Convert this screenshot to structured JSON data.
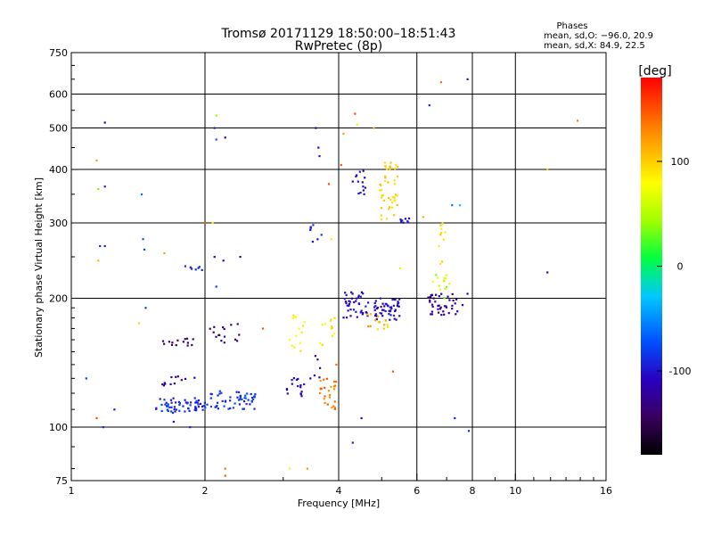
{
  "chart_data": {
    "type": "scatter",
    "title": "Tromsø 20171129 18:50:00–18:51:43",
    "subtitle": "RwPretec (8p)",
    "xlabel": "Frequency [MHz]",
    "ylabel": "Stationary phase Virtual Height [km]",
    "x_scale": "log",
    "y_scale": "log",
    "xlim": [
      1,
      16
    ],
    "ylim": [
      75,
      750
    ],
    "x_ticks": [
      1,
      2,
      4,
      6,
      8,
      10,
      16
    ],
    "y_ticks": [
      75,
      100,
      200,
      300,
      400,
      500,
      600,
      750
    ],
    "x_grid": [
      2,
      4,
      6,
      8,
      10
    ],
    "y_grid": [
      100,
      200,
      300,
      400,
      500,
      600
    ],
    "grid": true,
    "phases_box": {
      "heading": "Phases",
      "line_o": "mean, sd,O:  −96.0,  20.9",
      "line_x": "mean, sd,X:   84.9,  22.5"
    },
    "colorbar": {
      "label": "[deg]",
      "min": -180,
      "max": 180,
      "ticks": [
        100,
        0,
        -100
      ]
    },
    "clusters": [
      {
        "f": [
          1.55,
          2.0
        ],
        "h": [
          108,
          117
        ],
        "n": 60,
        "ph": [
          -105,
          -75
        ]
      },
      {
        "f": [
          2.0,
          2.6
        ],
        "h": [
          110,
          122
        ],
        "n": 55,
        "ph": [
          -100,
          -70
        ]
      },
      {
        "f": [
          1.6,
          1.9
        ],
        "h": [
          125,
          132
        ],
        "n": 12,
        "ph": [
          -130,
          -110
        ]
      },
      {
        "f": [
          1.6,
          1.9
        ],
        "h": [
          155,
          162
        ],
        "n": 14,
        "ph": [
          -150,
          -130
        ]
      },
      {
        "f": [
          2.05,
          2.4
        ],
        "h": [
          155,
          175
        ],
        "n": 16,
        "ph": [
          -150,
          -125
        ]
      },
      {
        "f": [
          1.8,
          1.98
        ],
        "h": [
          232,
          238
        ],
        "n": 8,
        "ph": [
          -95,
          -75
        ]
      },
      {
        "f": [
          3.05,
          3.35
        ],
        "h": [
          118,
          132
        ],
        "n": 16,
        "ph": [
          -120,
          -95
        ]
      },
      {
        "f": [
          3.1,
          3.35
        ],
        "h": [
          150,
          185
        ],
        "n": 14,
        "ph": [
          60,
          100
        ]
      },
      {
        "f": [
          3.6,
          3.95
        ],
        "h": [
          110,
          130
        ],
        "n": 26,
        "ph": [
          110,
          150
        ]
      },
      {
        "f": [
          3.6,
          3.95
        ],
        "h": [
          155,
          185
        ],
        "n": 12,
        "ph": [
          70,
          100
        ]
      },
      {
        "f": [
          3.45,
          3.8
        ],
        "h": [
          130,
          150
        ],
        "n": 6,
        "ph": [
          -130,
          -100
        ]
      },
      {
        "f": [
          4.1,
          4.7
        ],
        "h": [
          180,
          210
        ],
        "n": 40,
        "ph": [
          -120,
          -90
        ]
      },
      {
        "f": [
          4.8,
          5.5
        ],
        "h": [
          178,
          200
        ],
        "n": 50,
        "ph": [
          -120,
          -90
        ]
      },
      {
        "f": [
          4.6,
          5.2
        ],
        "h": [
          165,
          185
        ],
        "n": 14,
        "ph": [
          90,
          130
        ]
      },
      {
        "f": [
          4.95,
          5.45
        ],
        "h": [
          300,
          420
        ],
        "n": 45,
        "ph": [
          90,
          110
        ]
      },
      {
        "f": [
          5.45,
          5.9
        ],
        "h": [
          300,
          310
        ],
        "n": 8,
        "ph": [
          -110,
          -90
        ]
      },
      {
        "f": [
          4.3,
          4.6
        ],
        "h": [
          350,
          400
        ],
        "n": 14,
        "ph": [
          -115,
          -95
        ]
      },
      {
        "f": [
          3.45,
          3.7
        ],
        "h": [
          270,
          300
        ],
        "n": 8,
        "ph": [
          -100,
          -80
        ]
      },
      {
        "f": [
          6.3,
          7.4
        ],
        "h": [
          183,
          205
        ],
        "n": 40,
        "ph": [
          -140,
          -110
        ]
      },
      {
        "f": [
          6.5,
          7.1
        ],
        "h": [
          200,
          230
        ],
        "n": 14,
        "ph": [
          20,
          90
        ]
      },
      {
        "f": [
          6.7,
          7.0
        ],
        "h": [
          240,
          300
        ],
        "n": 10,
        "ph": [
          80,
          110
        ]
      }
    ],
    "points": [
      {
        "f": 1.08,
        "h": 130,
        "ph": -80
      },
      {
        "f": 1.14,
        "h": 105,
        "ph": 150
      },
      {
        "f": 1.18,
        "h": 100,
        "ph": -90
      },
      {
        "f": 1.25,
        "h": 110,
        "ph": -100
      },
      {
        "f": 1.15,
        "h": 245,
        "ph": 110
      },
      {
        "f": 1.16,
        "h": 265,
        "ph": -90
      },
      {
        "f": 1.19,
        "h": 265,
        "ph": -100
      },
      {
        "f": 1.15,
        "h": 360,
        "ph": 30
      },
      {
        "f": 1.19,
        "h": 365,
        "ph": -95
      },
      {
        "f": 1.14,
        "h": 420,
        "ph": 120
      },
      {
        "f": 1.19,
        "h": 515,
        "ph": -110
      },
      {
        "f": 1.45,
        "h": 275,
        "ph": -70
      },
      {
        "f": 1.44,
        "h": 350,
        "ph": -60
      },
      {
        "f": 1.46,
        "h": 260,
        "ph": -75
      },
      {
        "f": 1.47,
        "h": 190,
        "ph": -80
      },
      {
        "f": 1.42,
        "h": 175,
        "ph": 100
      },
      {
        "f": 1.62,
        "h": 255,
        "ph": 120
      },
      {
        "f": 1.7,
        "h": 103,
        "ph": -100
      },
      {
        "f": 1.85,
        "h": 100,
        "ph": -90
      },
      {
        "f": 2.0,
        "h": 300,
        "ph": 150
      },
      {
        "f": 2.08,
        "h": 300,
        "ph": 80
      },
      {
        "f": 2.1,
        "h": 250,
        "ph": -110
      },
      {
        "f": 2.2,
        "h": 245,
        "ph": -110
      },
      {
        "f": 2.4,
        "h": 250,
        "ph": -130
      },
      {
        "f": 2.12,
        "h": 535,
        "ph": 40
      },
      {
        "f": 2.1,
        "h": 500,
        "ph": -90
      },
      {
        "f": 2.12,
        "h": 470,
        "ph": -70
      },
      {
        "f": 2.22,
        "h": 475,
        "ph": -120
      },
      {
        "f": 2.12,
        "h": 213,
        "ph": -80
      },
      {
        "f": 2.22,
        "h": 80,
        "ph": 140
      },
      {
        "f": 2.22,
        "h": 77,
        "ph": 150
      },
      {
        "f": 2.7,
        "h": 170,
        "ph": 150
      },
      {
        "f": 3.1,
        "h": 80,
        "ph": 70
      },
      {
        "f": 3.4,
        "h": 80,
        "ph": 120
      },
      {
        "f": 3.55,
        "h": 500,
        "ph": -110
      },
      {
        "f": 3.6,
        "h": 450,
        "ph": -110
      },
      {
        "f": 3.62,
        "h": 430,
        "ph": -100
      },
      {
        "f": 3.8,
        "h": 370,
        "ph": 150
      },
      {
        "f": 3.85,
        "h": 275,
        "ph": 90
      },
      {
        "f": 3.95,
        "h": 140,
        "ph": 140
      },
      {
        "f": 4.05,
        "h": 410,
        "ph": 150
      },
      {
        "f": 4.1,
        "h": 485,
        "ph": 120
      },
      {
        "f": 4.35,
        "h": 540,
        "ph": 150
      },
      {
        "f": 4.4,
        "h": 510,
        "ph": 70
      },
      {
        "f": 4.3,
        "h": 92,
        "ph": -100
      },
      {
        "f": 4.5,
        "h": 105,
        "ph": -110
      },
      {
        "f": 4.8,
        "h": 500,
        "ph": 110
      },
      {
        "f": 5.3,
        "h": 135,
        "ph": 150
      },
      {
        "f": 5.5,
        "h": 235,
        "ph": 60
      },
      {
        "f": 6.2,
        "h": 310,
        "ph": 110
      },
      {
        "f": 6.4,
        "h": 565,
        "ph": -90
      },
      {
        "f": 6.8,
        "h": 640,
        "ph": 140
      },
      {
        "f": 7.2,
        "h": 330,
        "ph": -60
      },
      {
        "f": 7.5,
        "h": 330,
        "ph": -30
      },
      {
        "f": 7.3,
        "h": 105,
        "ph": -90
      },
      {
        "f": 7.8,
        "h": 650,
        "ph": -100
      },
      {
        "f": 7.85,
        "h": 98,
        "ph": -90
      },
      {
        "f": 7.6,
        "h": 193,
        "ph": -110
      },
      {
        "f": 7.8,
        "h": 205,
        "ph": -120
      },
      {
        "f": 11.8,
        "h": 400,
        "ph": 100
      },
      {
        "f": 11.8,
        "h": 230,
        "ph": -120
      },
      {
        "f": 13.8,
        "h": 520,
        "ph": 130
      }
    ]
  }
}
